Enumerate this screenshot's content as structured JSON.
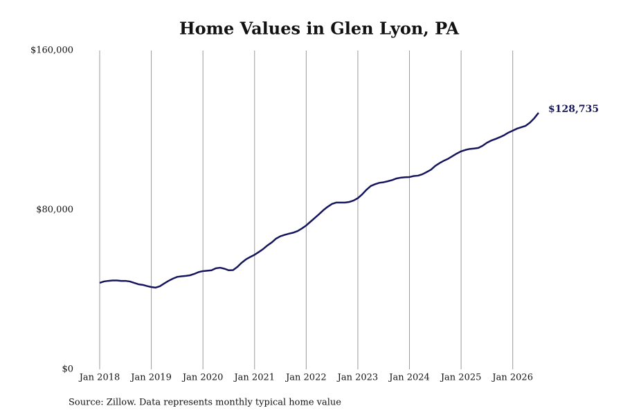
{
  "chart_data": {
    "type": "line",
    "title": "Home Values in Glen Lyon, PA",
    "source": "Source: Zillow. Data represents monthly typical home value",
    "x": [
      "2018-01",
      "2018-02",
      "2018-03",
      "2018-04",
      "2018-05",
      "2018-06",
      "2018-07",
      "2018-08",
      "2018-09",
      "2018-10",
      "2018-11",
      "2018-12",
      "2019-01",
      "2019-02",
      "2019-03",
      "2019-04",
      "2019-05",
      "2019-06",
      "2019-07",
      "2019-08",
      "2019-09",
      "2019-10",
      "2019-11",
      "2019-12",
      "2020-01",
      "2020-02",
      "2020-03",
      "2020-04",
      "2020-05",
      "2020-06",
      "2020-07",
      "2020-08",
      "2020-09",
      "2020-10",
      "2020-11",
      "2020-12",
      "2021-01",
      "2021-02",
      "2021-03",
      "2021-04",
      "2021-05",
      "2021-06",
      "2021-07",
      "2021-08",
      "2021-09",
      "2021-10",
      "2021-11",
      "2021-12",
      "2022-01",
      "2022-02",
      "2022-03",
      "2022-04",
      "2022-05",
      "2022-06",
      "2022-07",
      "2022-08",
      "2022-09",
      "2022-10",
      "2022-11",
      "2022-12",
      "2023-01",
      "2023-02",
      "2023-03",
      "2023-04",
      "2023-05",
      "2023-06",
      "2023-07",
      "2023-08",
      "2023-09",
      "2023-10",
      "2023-11",
      "2023-12",
      "2024-01",
      "2024-02",
      "2024-03",
      "2024-04",
      "2024-05",
      "2024-06",
      "2024-07",
      "2024-08",
      "2024-09",
      "2024-10",
      "2024-11",
      "2024-12",
      "2025-01",
      "2025-02",
      "2025-03",
      "2025-04",
      "2025-05",
      "2025-06",
      "2025-07",
      "2025-08",
      "2025-09",
      "2025-10",
      "2025-11",
      "2025-12",
      "2026-01",
      "2026-02",
      "2026-03",
      "2026-04",
      "2026-05",
      "2026-06",
      "2026-07"
    ],
    "series": [
      {
        "name": "Home value",
        "color": "#15155e",
        "values": [
          43400,
          44100,
          44400,
          44600,
          44600,
          44400,
          44400,
          44100,
          43400,
          42700,
          42400,
          41800,
          41300,
          41000,
          41700,
          43100,
          44400,
          45500,
          46400,
          46700,
          46900,
          47200,
          47900,
          48800,
          49300,
          49500,
          49700,
          50700,
          51000,
          50500,
          49700,
          49800,
          51400,
          53500,
          55200,
          56400,
          57500,
          58900,
          60400,
          62200,
          63700,
          65600,
          66800,
          67500,
          68100,
          68600,
          69400,
          70700,
          72200,
          74100,
          76000,
          77900,
          79900,
          81600,
          83000,
          83700,
          83700,
          83700,
          84000,
          84700,
          85900,
          87800,
          90100,
          92000,
          92900,
          93600,
          93900,
          94400,
          95000,
          95800,
          96200,
          96400,
          96500,
          97000,
          97200,
          97900,
          99000,
          100200,
          102100,
          103500,
          104700,
          105700,
          107000,
          108300,
          109400,
          110100,
          110600,
          110800,
          111100,
          112200,
          113700,
          114800,
          115600,
          116500,
          117500,
          118800,
          119800,
          120800,
          121500,
          122200,
          123800,
          126000,
          128735
        ],
        "value_labels": [
          null,
          null,
          null,
          null,
          null,
          null,
          null,
          null,
          null,
          null,
          null,
          null,
          null,
          null,
          null,
          null,
          null,
          null,
          null,
          null,
          null,
          null,
          null,
          null,
          null,
          null,
          null,
          null,
          null,
          null,
          null,
          null,
          null,
          null,
          null,
          null,
          null,
          null,
          null,
          null,
          null,
          null,
          null,
          null,
          null,
          null,
          null,
          null,
          null,
          null,
          null,
          null,
          null,
          null,
          null,
          null,
          null,
          null,
          null,
          null,
          null,
          null,
          null,
          null,
          null,
          null,
          null,
          null,
          null,
          null,
          null,
          null,
          null,
          null,
          null,
          null,
          null,
          null,
          null,
          null,
          null,
          null,
          null,
          null,
          null,
          null,
          null,
          null,
          null,
          null,
          null,
          null,
          null,
          null,
          null,
          null,
          null,
          null,
          null,
          null,
          null,
          null,
          "$128,735"
        ]
      }
    ],
    "xlim": [
      "2018-01",
      "2026-07"
    ],
    "xticks": [
      {
        "value": "2018-01",
        "label": "Jan 2018"
      },
      {
        "value": "2019-01",
        "label": "Jan 2019"
      },
      {
        "value": "2020-01",
        "label": "Jan 2020"
      },
      {
        "value": "2021-01",
        "label": "Jan 2021"
      },
      {
        "value": "2022-01",
        "label": "Jan 2022"
      },
      {
        "value": "2023-01",
        "label": "Jan 2023"
      },
      {
        "value": "2024-01",
        "label": "Jan 2024"
      },
      {
        "value": "2025-01",
        "label": "Jan 2025"
      },
      {
        "value": "2026-01",
        "label": "Jan 2026"
      }
    ],
    "ylim": [
      0,
      160000
    ],
    "yticks": [
      {
        "value": 0,
        "label": "$0"
      },
      {
        "value": 80000,
        "label": "$80,000"
      },
      {
        "value": 160000,
        "label": "$160,000"
      }
    ],
    "grid": true
  }
}
